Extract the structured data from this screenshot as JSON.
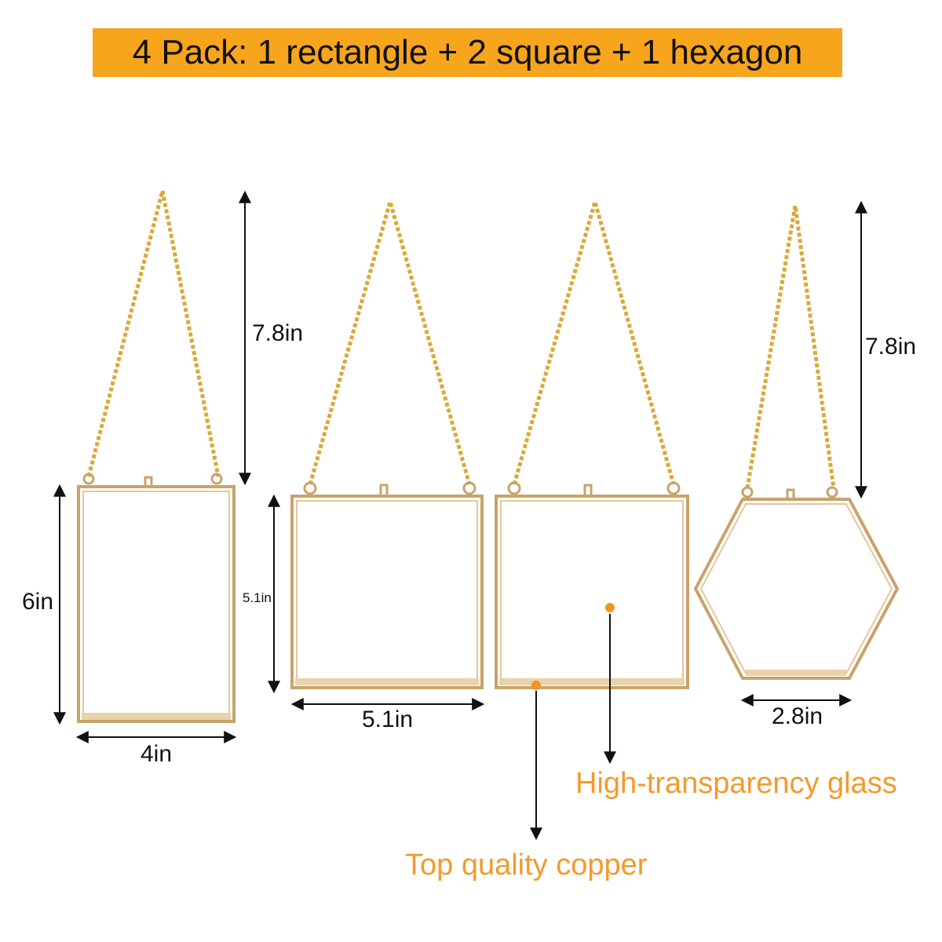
{
  "banner": {
    "text": "4 Pack: 1 rectangle + 2 square + 1 hexagon"
  },
  "dimensions": {
    "rect_chain": "7.8in",
    "rect_height": "6in",
    "rect_width": "4in",
    "square_height": "5.1in",
    "square_width": "5.1in",
    "hex_chain": "7.8in",
    "hex_width": "2.8in"
  },
  "callouts": {
    "glass": "High-transparency glass",
    "copper": "Top quality copper"
  },
  "colors": {
    "banner": "#f7a51d",
    "frame_gold": "#c9a36b",
    "chain_gold": "#d9a93a",
    "callout_orange": "#f39a2c",
    "dot_orange": "#f29422"
  }
}
